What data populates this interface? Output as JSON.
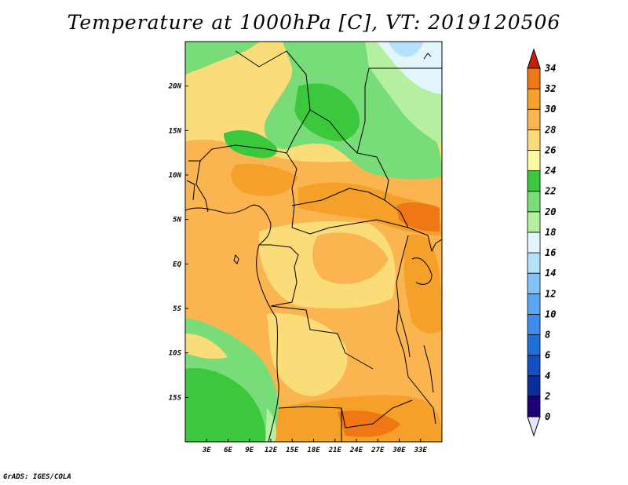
{
  "title": "Temperature at 1000hPa [C], VT: 2019120506",
  "credit": "GrADS: IGES/COLA",
  "map": {
    "lon_range": [
      0,
      36
    ],
    "lat_range": [
      -20,
      25
    ],
    "lon_ticks": [
      "3E",
      "6E",
      "9E",
      "12E",
      "15E",
      "18E",
      "21E",
      "24E",
      "27E",
      "30E",
      "33E"
    ],
    "lat_ticks": [
      "20N",
      "15N",
      "10N",
      "5N",
      "EQ",
      "5S",
      "10S",
      "15S"
    ]
  },
  "colorbar": {
    "levels": [
      "0",
      "2",
      "4",
      "6",
      "8",
      "10",
      "12",
      "14",
      "16",
      "18",
      "20",
      "22",
      "24",
      "26",
      "28",
      "30",
      "32",
      "34"
    ],
    "colors": [
      "#1e0078",
      "#0a2d9b",
      "#1450c3",
      "#1e6ed7",
      "#3c8ceb",
      "#5aa5f5",
      "#82c3fa",
      "#b4e1fc",
      "#e1f5fa",
      "#b4f0a0",
      "#78dc78",
      "#3cc83c",
      "#fafaa0",
      "#fadc78",
      "#fab450",
      "#f5a028",
      "#f07814",
      "#e64b0a",
      "#c81e0a"
    ]
  }
}
